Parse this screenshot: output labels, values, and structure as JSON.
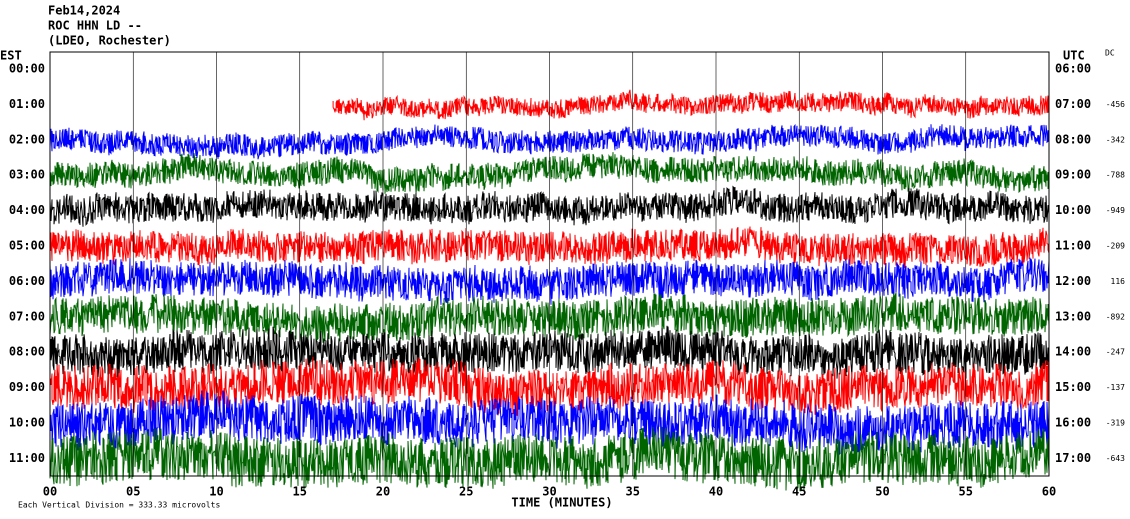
{
  "chart_data": {
    "type": "helicorder",
    "title": [
      "Feb14,2024",
      "ROC HHN LD --",
      "(LDEO, Rochester)"
    ],
    "left_axis_label": "EST",
    "right_axis_label": "UTC",
    "dc_label": "DC",
    "x_label": "TIME (MINUTES)",
    "footnote": "Each Vertical Division =  333.33 microvolts",
    "xlim": [
      0,
      60
    ],
    "xticks": [
      {
        "value": 0,
        "label": "00"
      },
      {
        "value": 5,
        "label": "05"
      },
      10,
      15,
      20,
      25,
      30,
      35,
      40,
      45,
      50,
      55,
      60
    ],
    "rows": [
      {
        "est": "00:00",
        "utc": "06:00"
      },
      {
        "est": "01:00",
        "utc": "07:00",
        "dc": -456,
        "color": "#ff0000",
        "start": 17
      },
      {
        "est": "02:00",
        "utc": "08:00",
        "dc": -342,
        "color": "#0000ff",
        "start": 0
      },
      {
        "est": "03:00",
        "utc": "09:00",
        "dc": -788,
        "color": "#006400",
        "start": 0
      },
      {
        "est": "04:00",
        "utc": "10:00",
        "dc": -949,
        "color": "#000000",
        "start": 0
      },
      {
        "est": "05:00",
        "utc": "11:00",
        "dc": -209,
        "color": "#ff0000",
        "start": 0
      },
      {
        "est": "06:00",
        "utc": "12:00",
        "dc": 116,
        "color": "#0000ff",
        "start": 0
      },
      {
        "est": "07:00",
        "utc": "13:00",
        "dc": -892,
        "color": "#006400",
        "start": 0
      },
      {
        "est": "08:00",
        "utc": "14:00",
        "dc": -247,
        "color": "#000000",
        "start": 0
      },
      {
        "est": "09:00",
        "utc": "15:00",
        "dc": -137,
        "color": "#ff0000",
        "start": 0
      },
      {
        "est": "10:00",
        "utc": "16:00",
        "dc": -319,
        "color": "#0000ff",
        "start": 0
      },
      {
        "est": "11:00",
        "utc": "17:00",
        "dc": -643,
        "color": "#006400",
        "start": 0
      }
    ]
  }
}
